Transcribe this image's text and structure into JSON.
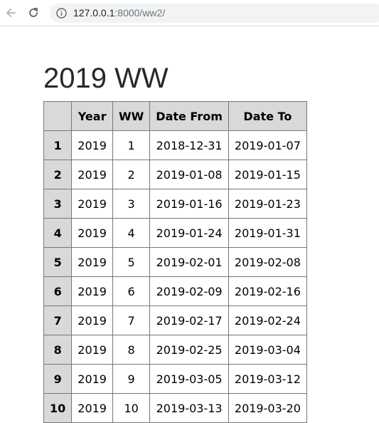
{
  "browser": {
    "url_host": "127.0.0.1",
    "url_rest": ":8000/ww2/",
    "back_icon": "arrow-left-icon",
    "reload_icon": "reload-icon",
    "info_icon": "info-icon"
  },
  "page": {
    "title": "2019 WW"
  },
  "table": {
    "headers": [
      "",
      "Year",
      "WW",
      "Date From",
      "Date To"
    ],
    "rows": [
      {
        "idx": "1",
        "year": "2019",
        "ww": "1",
        "from": "2018-12-31",
        "to": "2019-01-07"
      },
      {
        "idx": "2",
        "year": "2019",
        "ww": "2",
        "from": "2019-01-08",
        "to": "2019-01-15"
      },
      {
        "idx": "3",
        "year": "2019",
        "ww": "3",
        "from": "2019-01-16",
        "to": "2019-01-23"
      },
      {
        "idx": "4",
        "year": "2019",
        "ww": "4",
        "from": "2019-01-24",
        "to": "2019-01-31"
      },
      {
        "idx": "5",
        "year": "2019",
        "ww": "5",
        "from": "2019-02-01",
        "to": "2019-02-08"
      },
      {
        "idx": "6",
        "year": "2019",
        "ww": "6",
        "from": "2019-02-09",
        "to": "2019-02-16"
      },
      {
        "idx": "7",
        "year": "2019",
        "ww": "7",
        "from": "2019-02-17",
        "to": "2019-02-24"
      },
      {
        "idx": "8",
        "year": "2019",
        "ww": "8",
        "from": "2019-02-25",
        "to": "2019-03-04"
      },
      {
        "idx": "9",
        "year": "2019",
        "ww": "9",
        "from": "2019-03-05",
        "to": "2019-03-12"
      },
      {
        "idx": "10",
        "year": "2019",
        "ww": "10",
        "from": "2019-03-13",
        "to": "2019-03-20"
      }
    ]
  }
}
